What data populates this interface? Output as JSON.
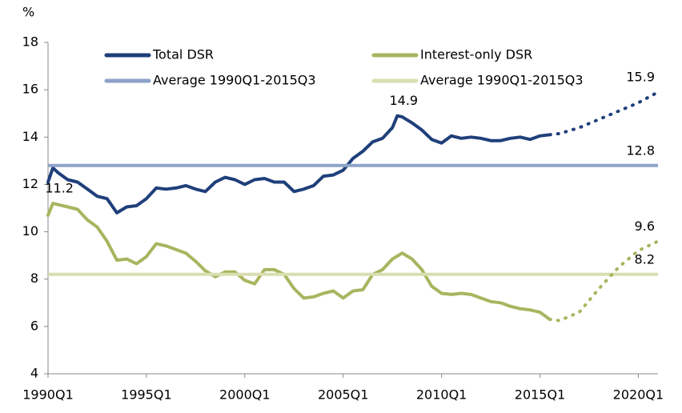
{
  "chart_data": {
    "type": "line",
    "y_unit": "%",
    "xlim": [
      1990,
      2021
    ],
    "xticks": [
      {
        "value": 1990,
        "label": "1990Q1"
      },
      {
        "value": 1995,
        "label": "1995Q1"
      },
      {
        "value": 2000,
        "label": "2000Q1"
      },
      {
        "value": 2005,
        "label": "2005Q1"
      },
      {
        "value": 2010,
        "label": "2010Q1"
      },
      {
        "value": 2015,
        "label": "2015Q1"
      },
      {
        "value": 2020,
        "label": "2020Q1"
      }
    ],
    "ylim": [
      4,
      18
    ],
    "yticks": [
      4,
      6,
      8,
      10,
      12,
      14,
      16,
      18
    ],
    "series": [
      {
        "name": "Total DSR",
        "color": "#1f3f7a",
        "x": [
          1990,
          1990.25,
          1990.5,
          1991,
          1991.5,
          1992,
          1992.5,
          1993,
          1993.5,
          1994,
          1994.5,
          1995,
          1995.5,
          1996,
          1996.5,
          1997,
          1997.5,
          1998,
          1998.5,
          1999,
          1999.5,
          2000,
          2000.5,
          2001,
          2001.5,
          2002,
          2002.5,
          2003,
          2003.5,
          2004,
          2004.5,
          2005,
          2005.5,
          2006,
          2006.5,
          2007,
          2007.5,
          2007.75,
          2008,
          2008.5,
          2009,
          2009.5,
          2010,
          2010.5,
          2011,
          2011.5,
          2012,
          2012.5,
          2013,
          2013.5,
          2014,
          2014.5,
          2015,
          2015.5
        ],
        "values": [
          12.1,
          12.7,
          12.5,
          12.2,
          12.1,
          11.8,
          11.5,
          11.4,
          10.8,
          11.05,
          11.1,
          11.4,
          11.85,
          11.8,
          11.85,
          11.95,
          11.8,
          11.7,
          12.1,
          12.3,
          12.2,
          12.0,
          12.2,
          12.25,
          12.1,
          12.1,
          11.7,
          11.8,
          11.95,
          12.35,
          12.4,
          12.6,
          13.1,
          13.4,
          13.8,
          13.95,
          14.4,
          14.9,
          14.85,
          14.6,
          14.3,
          13.9,
          13.75,
          14.05,
          13.95,
          14.0,
          13.95,
          13.85,
          13.85,
          13.95,
          14.0,
          13.9,
          14.05,
          14.1
        ]
      },
      {
        "name": "Interest-only DSR",
        "color": "#a9b55f",
        "x": [
          1990,
          1990.25,
          1990.5,
          1991,
          1991.5,
          1992,
          1992.5,
          1993,
          1993.5,
          1994,
          1994.5,
          1995,
          1995.5,
          1996,
          1996.5,
          1997,
          1997.5,
          1998,
          1998.5,
          1999,
          1999.5,
          2000,
          2000.5,
          2001,
          2001.5,
          2002,
          2002.5,
          2003,
          2003.5,
          2004,
          2004.5,
          2005,
          2005.5,
          2006,
          2006.5,
          2007,
          2007.5,
          2008,
          2008.5,
          2009,
          2009.5,
          2010,
          2010.5,
          2011,
          2011.5,
          2012,
          2012.5,
          2013,
          2013.5,
          2014,
          2014.5,
          2015,
          2015.5
        ],
        "values": [
          10.7,
          11.2,
          11.15,
          11.05,
          10.95,
          10.5,
          10.2,
          9.6,
          8.8,
          8.85,
          8.65,
          8.95,
          9.5,
          9.4,
          9.25,
          9.1,
          8.75,
          8.35,
          8.1,
          8.3,
          8.3,
          7.95,
          7.8,
          8.4,
          8.4,
          8.2,
          7.6,
          7.2,
          7.25,
          7.4,
          7.5,
          7.2,
          7.5,
          7.55,
          8.2,
          8.4,
          8.85,
          9.1,
          8.85,
          8.4,
          7.7,
          7.4,
          7.35,
          7.4,
          7.35,
          7.2,
          7.05,
          7.0,
          6.85,
          6.75,
          6.7,
          6.6,
          6.3
        ]
      },
      {
        "name": "Average 1990Q1-2015Q3",
        "color": "#8ea3c9",
        "value": 12.8
      },
      {
        "name": "Average 1990Q1-2015Q3",
        "color": "#d9deb0",
        "value": 8.2
      },
      {
        "color": "#1f3f7a",
        "dotted": true,
        "x": [
          2015.5,
          2016,
          2017,
          2018,
          2019,
          2020,
          2021
        ],
        "values": [
          14.1,
          14.15,
          14.4,
          14.75,
          15.1,
          15.45,
          15.9
        ]
      },
      {
        "color": "#a9b55f",
        "dotted": true,
        "x": [
          2015.5,
          2016,
          2017,
          2018,
          2019,
          2020,
          2021
        ],
        "values": [
          6.3,
          6.25,
          6.6,
          7.6,
          8.5,
          9.2,
          9.6
        ]
      }
    ],
    "annotations": [
      {
        "text": "14.9",
        "x": 2007.75,
        "y": 14.9
      },
      {
        "text": "11.2",
        "x": 1990.25,
        "y": 11.2
      },
      {
        "text": "15.9",
        "x": 2021,
        "y": 15.9
      },
      {
        "text": "12.8",
        "x": 2021,
        "y": 12.8
      },
      {
        "text": "9.6",
        "x": 2021,
        "y": 9.6
      },
      {
        "text": "8.2",
        "x": 2021,
        "y": 8.2
      }
    ]
  }
}
